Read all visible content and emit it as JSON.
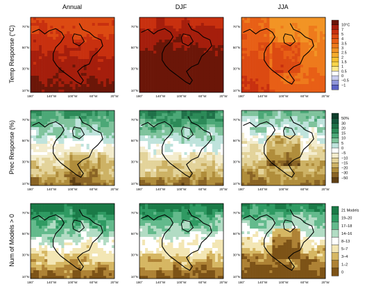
{
  "columns": [
    "Annual",
    "DJF",
    "JJA"
  ],
  "row_labels": [
    "Temp Response (°C)",
    "Prec Response (%)",
    "Num of Models > 0"
  ],
  "lat_labels": [
    "70°N",
    "50°N",
    "30°N",
    "10°N"
  ],
  "lon_labels": [
    "180°",
    "140°W",
    "100°W",
    "60°W",
    "20°W"
  ],
  "colorbars": [
    {
      "name": "temperature",
      "labels": [
        "10°C",
        "7",
        "5",
        "4",
        "3.5",
        "3",
        "2.5",
        "2",
        "1.5",
        "1",
        "0.5",
        "0",
        "−0.5",
        "−1"
      ],
      "colors": [
        "#6b1608",
        "#a51e0c",
        "#c8300f",
        "#dc4a12",
        "#e85f16",
        "#ee7a1c",
        "#f29425",
        "#f4ab2c",
        "#f6c232",
        "#f8d54a",
        "#fbe98d",
        "#ffffff",
        "#c9cdee",
        "#8f95d9",
        "#5a62c4"
      ]
    },
    {
      "name": "precipitation",
      "labels": [
        "50%",
        "30",
        "20",
        "15",
        "10",
        "5",
        "0",
        "−5",
        "−10",
        "−15",
        "−20",
        "−30",
        "−50"
      ],
      "colors": [
        "#0e3e2c",
        "#15563c",
        "#1f7048",
        "#2c8a58",
        "#4ca877",
        "#7fc39c",
        "#bfe3dc",
        "#ffffff",
        "#f3eccd",
        "#e3d39a",
        "#cdb265",
        "#b08d3b",
        "#8a6425",
        "#5e3f14"
      ]
    },
    {
      "name": "models",
      "labels": [
        "21 Models",
        "19–20",
        "17–18",
        "14–16",
        "8–13",
        "5–7",
        "3–4",
        "1–2",
        "0"
      ],
      "colors": [
        "#1a7a47",
        "#2f9a62",
        "#63ba8c",
        "#b2dcc4",
        "#ffffff",
        "#f3e6b4",
        "#d6b763",
        "#ae8235",
        "#7d5317"
      ]
    }
  ]
}
